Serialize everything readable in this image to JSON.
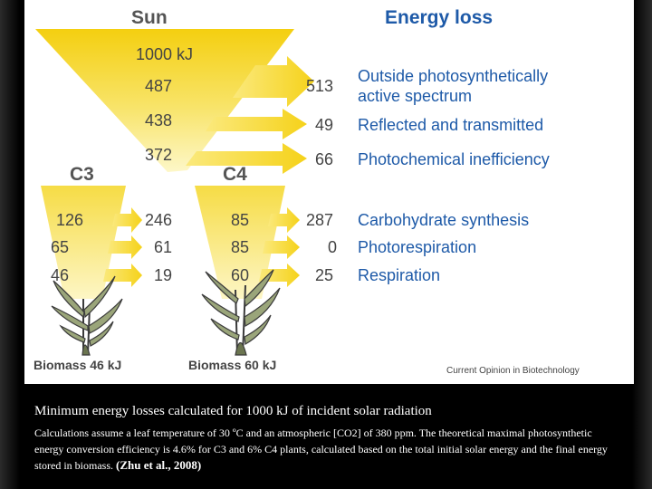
{
  "diagram": {
    "sun_title": "Sun",
    "energy_loss_title": "Energy loss",
    "incident": "1000 kJ",
    "sun_steps": [
      "487",
      "438",
      "372"
    ],
    "losses": [
      {
        "value": "513",
        "label_line1": "Outside photosynthetically",
        "label_line2": "active spectrum"
      },
      {
        "value": "49",
        "label": "Reflected and transmitted"
      },
      {
        "value": "66",
        "label": "Photochemical inefficiency"
      }
    ],
    "c3_title": "C3",
    "c4_title": "C4",
    "plant_rows": [
      {
        "c3": "126",
        "c3_loss": "246",
        "c4": "85",
        "c4_loss": "287",
        "label": "Carbohydrate synthesis"
      },
      {
        "c3": "65",
        "c3_loss": "61",
        "c4": "85",
        "c4_loss": "0",
        "label": "Photorespiration"
      },
      {
        "c3": "46",
        "c3_loss": "19",
        "c4": "60",
        "c4_loss": "25",
        "label": "Respiration"
      }
    ],
    "c3_biomass": "Biomass 46 kJ",
    "c4_biomass": "Biomass 60 kJ",
    "credit": "Current Opinion in Biotechnology",
    "colors": {
      "yellow": "#f5d21a",
      "pale_yellow": "#fbf3b4",
      "blue": "#1e5aa8",
      "grey": "#555555"
    }
  },
  "caption": {
    "title": "Minimum energy losses calculated for 1000 kJ of incident solar radiation",
    "body": "Calculations assume a leaf temperature of 30 ºC and an atmospheric [CO2] of 380 ppm. The theoretical maximal photosynthetic energy conversion efficiency is 4.6% for C3 and 6% C4 plants, calculated based on the total initial solar energy and the final energy stored in biomass.",
    "citation": "(Zhu et al., 2008)"
  }
}
